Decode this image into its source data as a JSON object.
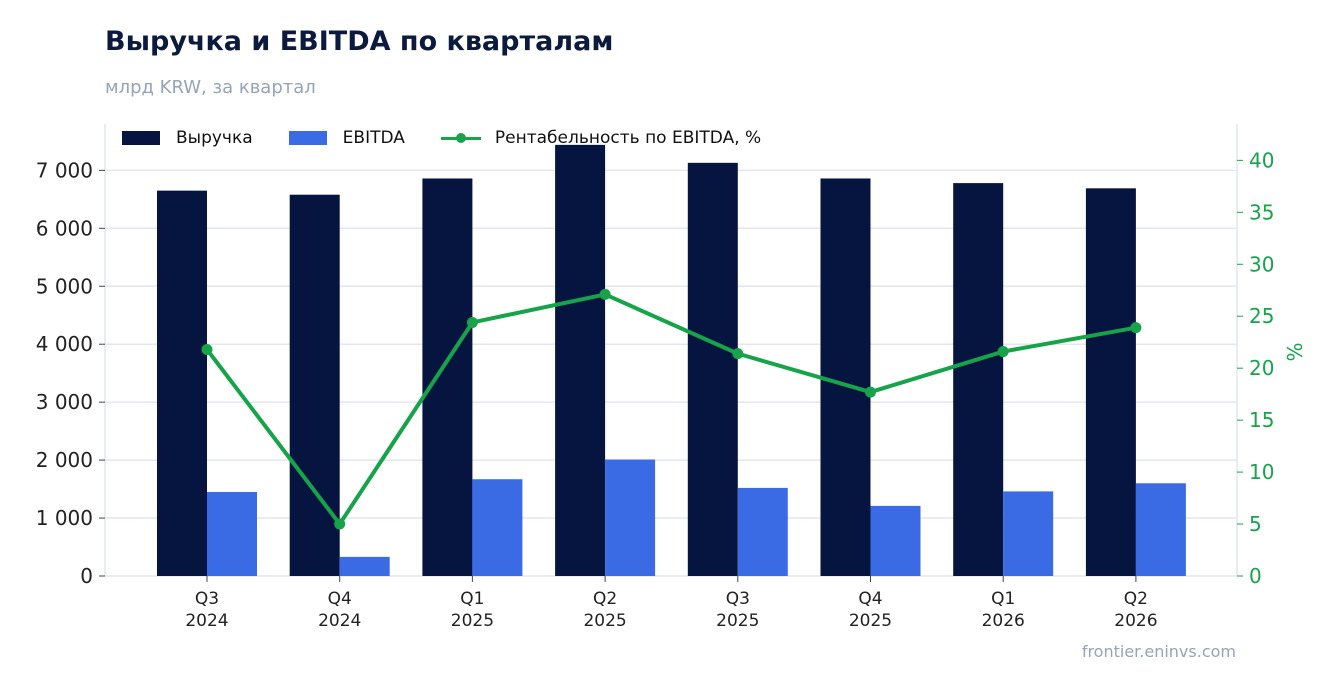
{
  "header": {
    "title": "Выручка и EBITDA по кварталам",
    "subtitle": "млрд KRW, за квартал"
  },
  "footer": {
    "source": "frontier.eninvs.com"
  },
  "colors": {
    "revenue": "#06153f",
    "ebitda": "#3a6be4",
    "margin": "#16a34a",
    "grid": "#e3e6ef",
    "axis_text": "#222222"
  },
  "chart_data": {
    "type": "bar",
    "categories": [
      [
        "Q3",
        "2024"
      ],
      [
        "Q4",
        "2024"
      ],
      [
        "Q1",
        "2025"
      ],
      [
        "Q2",
        "2025"
      ],
      [
        "Q3",
        "2025"
      ],
      [
        "Q4",
        "2025"
      ],
      [
        "Q1",
        "2026"
      ],
      [
        "Q2",
        "2026"
      ]
    ],
    "series": [
      {
        "name": "Выручка",
        "type": "bar",
        "axis": "left",
        "values": [
          6650,
          6580,
          6860,
          7440,
          7130,
          6860,
          6780,
          6690
        ]
      },
      {
        "name": "EBITDA",
        "type": "bar",
        "axis": "left",
        "values": [
          1450,
          330,
          1670,
          2010,
          1520,
          1210,
          1460,
          1600
        ]
      },
      {
        "name": "Рентабельность по EBITDA, %",
        "type": "line",
        "axis": "right",
        "values": [
          21.8,
          5.0,
          24.4,
          27.1,
          21.4,
          17.7,
          21.6,
          23.9
        ]
      }
    ],
    "y_left": {
      "min": 0,
      "max": 7800,
      "ticks": [
        0,
        1000,
        2000,
        3000,
        4000,
        5000,
        6000,
        7000
      ],
      "tick_labels": [
        "0",
        "1 000",
        "2 000",
        "3 000",
        "4 000",
        "5 000",
        "6 000",
        "7 000"
      ]
    },
    "y_right": {
      "label": "%",
      "min": 0,
      "max": 43.5,
      "ticks": [
        0,
        5,
        10,
        15,
        20,
        25,
        30,
        35,
        40
      ],
      "tick_labels": [
        "0",
        "5",
        "10",
        "15",
        "20",
        "25",
        "30",
        "35",
        "40"
      ]
    },
    "grid": true,
    "legend_position": "top-left"
  }
}
